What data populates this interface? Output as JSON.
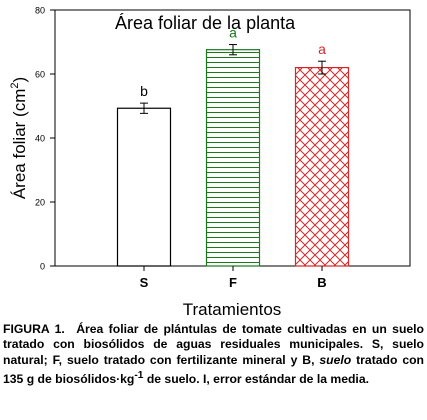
{
  "chart_data": {
    "type": "bar",
    "title": "Área foliar de la planta",
    "xlabel": "Tratamientos",
    "ylabel": "Área foliar (cm",
    "ylabel_sup": "2",
    "ylabel_end": ")",
    "ylim": [
      0,
      80
    ],
    "yticks": [
      "0",
      "20",
      "40",
      "60",
      "80"
    ],
    "ytick_values": [
      0,
      20,
      40,
      60,
      80
    ],
    "grid": false,
    "categories": [
      "S",
      "F",
      "B"
    ],
    "values": [
      49.3,
      67.6,
      62.0
    ],
    "errors": [
      1.6,
      1.6,
      2.0
    ],
    "letters": [
      "b",
      "a",
      "a"
    ],
    "fills": [
      "none",
      "horizontal-lines",
      "crosshatch"
    ],
    "colors": [
      "#000000",
      "#1a7a1a",
      "#d62728"
    ]
  },
  "caption": {
    "label": "FIGURA 1.",
    "part1": "Área foliar de plántulas de tomate cultivadas en un suelo tratado con biosólidos de aguas residuales municipales. S, suelo natural; F, suelo tratado con fertilizante mineral y B,",
    "italic": "suelo",
    "part2": "tratado con 135 g de biosólidos·kg",
    "sup": "-1",
    "part3": "de suelo. I, error estándar de la media."
  }
}
